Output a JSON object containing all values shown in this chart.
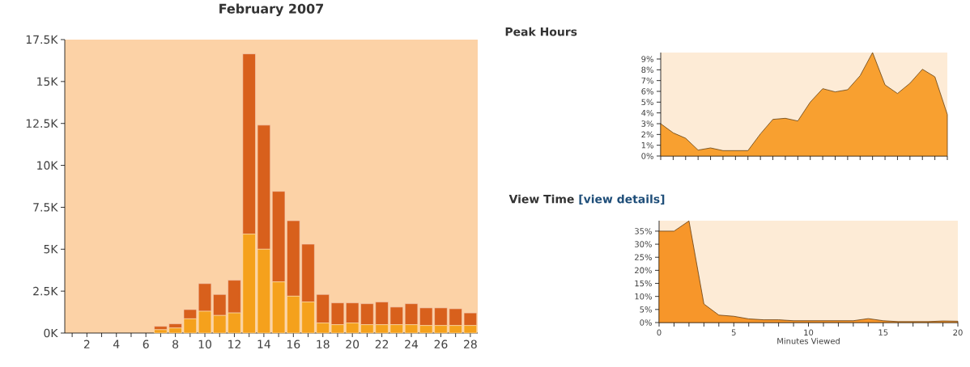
{
  "chart_data": [
    {
      "type": "bar",
      "title": "February 2007",
      "stacked": true,
      "categories": [
        null,
        "2",
        null,
        "4",
        null,
        "6",
        null,
        "8",
        null,
        "10",
        null,
        "12",
        null,
        "14",
        null,
        "16",
        null,
        "18",
        null,
        "20",
        null,
        "22",
        null,
        "24",
        null,
        "26",
        null,
        "28"
      ],
      "series": [
        {
          "color": "#f5a11c",
          "values": [
            0,
            0,
            0,
            0,
            0,
            0,
            0.2,
            0.3,
            0.85,
            1.3,
            1.05,
            1.2,
            5.9,
            5.0,
            3.05,
            2.2,
            1.85,
            0.6,
            0.5,
            0.6,
            0.5,
            0.5,
            0.5,
            0.5,
            0.45,
            0.45,
            0.45,
            0.45
          ]
        },
        {
          "color": "#d8601c",
          "values": [
            0,
            0,
            0,
            0,
            0,
            0,
            0.2,
            0.25,
            0.55,
            1.65,
            1.25,
            1.95,
            10.75,
            7.4,
            5.4,
            4.5,
            3.45,
            1.7,
            1.3,
            1.2,
            1.25,
            1.35,
            1.05,
            1.25,
            1.05,
            1.05,
            1.0,
            0.75
          ]
        }
      ],
      "ylim": [
        0,
        17.5
      ],
      "yticks": [
        {
          "value": 0,
          "label": "0K"
        },
        {
          "value": 2.5,
          "label": "2.5K"
        },
        {
          "value": 5,
          "label": "5K"
        },
        {
          "value": 7.5,
          "label": "7.5K"
        },
        {
          "value": 10,
          "label": "10K"
        },
        {
          "value": 12.5,
          "label": "12.5K"
        },
        {
          "value": 15,
          "label": "15K"
        },
        {
          "value": 17.5,
          "label": "17.5K"
        }
      ]
    },
    {
      "type": "area",
      "title": "Peak Hours",
      "tick_labels": "y",
      "color": "#f8a030",
      "categories": [
        null,
        null,
        null,
        null,
        null,
        null,
        null,
        null,
        null,
        null,
        null,
        null,
        null,
        null,
        null,
        null,
        null,
        null,
        null,
        null,
        null,
        null,
        null,
        null
      ],
      "values": [
        3.0,
        2.15,
        1.65,
        0.55,
        0.75,
        0.5,
        0.5,
        0.5,
        2.05,
        3.4,
        3.5,
        3.25,
        5.0,
        6.25,
        5.95,
        6.15,
        7.45,
        9.6,
        6.6,
        5.8,
        6.75,
        8.05,
        7.35,
        3.85
      ],
      "ylim": [
        0,
        9.6
      ],
      "yticks": [
        {
          "value": 0,
          "label": "0%"
        },
        {
          "value": 1,
          "label": "1%"
        },
        {
          "value": 2,
          "label": "2%"
        },
        {
          "value": 3,
          "label": "3%"
        },
        {
          "value": 4,
          "label": "4%"
        },
        {
          "value": 5,
          "label": "5%"
        },
        {
          "value": 6,
          "label": "6%"
        },
        {
          "value": 7,
          "label": "7%"
        },
        {
          "value": 8,
          "label": "8%"
        },
        {
          "value": 9,
          "label": "9%"
        }
      ]
    },
    {
      "type": "area",
      "title": "View Time",
      "subtitle": "[view details]",
      "xlabel": "Minutes Viewed",
      "color": "#f7962a",
      "x": [
        0,
        1,
        2,
        3,
        4,
        5,
        6,
        7,
        8,
        9,
        10,
        11,
        12,
        13,
        14,
        15,
        16,
        17,
        18,
        19,
        20
      ],
      "values": [
        35,
        35,
        38.9,
        7.1,
        2.85,
        2.4,
        1.4,
        1.05,
        1.05,
        0.7,
        0.7,
        0.7,
        0.7,
        0.7,
        1.5,
        0.7,
        0.35,
        0.35,
        0.35,
        0.6,
        0.5
      ],
      "xlim": [
        0,
        20
      ],
      "xticks": [
        0,
        {
          "value": 1,
          "label": null
        },
        {
          "value": 2,
          "label": null
        },
        {
          "value": 3,
          "label": null
        },
        {
          "value": 4,
          "label": null
        },
        5,
        {
          "value": 6,
          "label": null
        },
        {
          "value": 7,
          "label": null
        },
        {
          "value": 8,
          "label": null
        },
        {
          "value": 9,
          "label": null
        },
        10,
        {
          "value": 11,
          "label": null
        },
        {
          "value": 12,
          "label": null
        },
        {
          "value": 13,
          "label": null
        },
        {
          "value": 14,
          "label": null
        },
        15,
        {
          "value": 16,
          "label": null
        },
        {
          "value": 17,
          "label": null
        },
        {
          "value": 18,
          "label": null
        },
        {
          "value": 19,
          "label": null
        },
        20
      ],
      "ylim": [
        0,
        39
      ],
      "yticks": [
        {
          "value": 0,
          "label": "0%"
        },
        {
          "value": 5,
          "label": "5%"
        },
        {
          "value": 10,
          "label": "10%"
        },
        {
          "value": 15,
          "label": "15%"
        },
        {
          "value": 20,
          "label": "20%"
        },
        {
          "value": 25,
          "label": "25%"
        },
        {
          "value": 30,
          "label": "30%"
        },
        {
          "value": 35,
          "label": "35%"
        }
      ]
    }
  ]
}
